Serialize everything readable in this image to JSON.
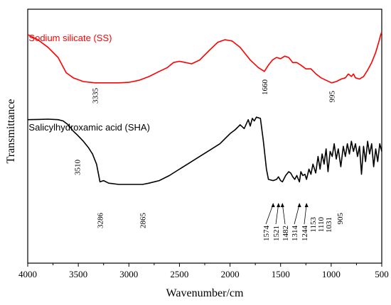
{
  "chart_data": {
    "type": "line",
    "xlabel": "Wavenumber/cm",
    "ylabel": "Transmittance",
    "xlim": [
      4000,
      500
    ],
    "x_reversed": true,
    "x_ticks": [
      "4000",
      "3500",
      "3000",
      "2500",
      "2000",
      "1500",
      "1000",
      "500"
    ],
    "grid": false,
    "series": [
      {
        "name": "Sodium silicate (SS)",
        "color": "#ff0000",
        "points": [
          [
            4000,
            0.9
          ],
          [
            3900,
            0.88
          ],
          [
            3800,
            0.85
          ],
          [
            3700,
            0.81
          ],
          [
            3620,
            0.75
          ],
          [
            3550,
            0.73
          ],
          [
            3450,
            0.715
          ],
          [
            3335,
            0.71
          ],
          [
            3200,
            0.71
          ],
          [
            3100,
            0.71
          ],
          [
            3000,
            0.712
          ],
          [
            2900,
            0.72
          ],
          [
            2800,
            0.735
          ],
          [
            2700,
            0.755
          ],
          [
            2620,
            0.77
          ],
          [
            2560,
            0.79
          ],
          [
            2500,
            0.795
          ],
          [
            2440,
            0.79
          ],
          [
            2380,
            0.785
          ],
          [
            2300,
            0.8
          ],
          [
            2200,
            0.84
          ],
          [
            2120,
            0.87
          ],
          [
            2050,
            0.88
          ],
          [
            1980,
            0.875
          ],
          [
            1900,
            0.85
          ],
          [
            1800,
            0.8
          ],
          [
            1720,
            0.77
          ],
          [
            1660,
            0.755
          ],
          [
            1620,
            0.78
          ],
          [
            1580,
            0.8
          ],
          [
            1540,
            0.81
          ],
          [
            1500,
            0.805
          ],
          [
            1460,
            0.815
          ],
          [
            1420,
            0.81
          ],
          [
            1380,
            0.79
          ],
          [
            1340,
            0.79
          ],
          [
            1300,
            0.78
          ],
          [
            1250,
            0.765
          ],
          [
            1200,
            0.765
          ],
          [
            1150,
            0.745
          ],
          [
            1100,
            0.73
          ],
          [
            1050,
            0.72
          ],
          [
            995,
            0.71
          ],
          [
            950,
            0.715
          ],
          [
            900,
            0.725
          ],
          [
            860,
            0.73
          ],
          [
            830,
            0.745
          ],
          [
            800,
            0.735
          ],
          [
            780,
            0.745
          ],
          [
            760,
            0.73
          ],
          [
            720,
            0.725
          ],
          [
            680,
            0.735
          ],
          [
            640,
            0.76
          ],
          [
            600,
            0.79
          ],
          [
            560,
            0.83
          ],
          [
            530,
            0.87
          ],
          [
            510,
            0.9
          ],
          [
            500,
            0.91
          ]
        ],
        "peaks": [
          "3335",
          "1660",
          "995"
        ]
      },
      {
        "name": "Salicylhydroxamic acid (SHA)",
        "color": "#000000",
        "points": [
          [
            4000,
            0.565
          ],
          [
            3900,
            0.566
          ],
          [
            3800,
            0.567
          ],
          [
            3700,
            0.565
          ],
          [
            3650,
            0.56
          ],
          [
            3600,
            0.545
          ],
          [
            3550,
            0.52
          ],
          [
            3510,
            0.505
          ],
          [
            3450,
            0.48
          ],
          [
            3400,
            0.455
          ],
          [
            3360,
            0.43
          ],
          [
            3320,
            0.39
          ],
          [
            3300,
            0.35
          ],
          [
            3286,
            0.32
          ],
          [
            3250,
            0.325
          ],
          [
            3200,
            0.315
          ],
          [
            3100,
            0.31
          ],
          [
            3000,
            0.31
          ],
          [
            2865,
            0.31
          ],
          [
            2800,
            0.315
          ],
          [
            2700,
            0.325
          ],
          [
            2600,
            0.345
          ],
          [
            2500,
            0.37
          ],
          [
            2400,
            0.395
          ],
          [
            2300,
            0.42
          ],
          [
            2200,
            0.445
          ],
          [
            2100,
            0.47
          ],
          [
            2000,
            0.51
          ],
          [
            1950,
            0.525
          ],
          [
            1900,
            0.545
          ],
          [
            1860,
            0.53
          ],
          [
            1820,
            0.565
          ],
          [
            1800,
            0.54
          ],
          [
            1780,
            0.57
          ],
          [
            1760,
            0.56
          ],
          [
            1740,
            0.575
          ],
          [
            1700,
            0.57
          ],
          [
            1670,
            0.48
          ],
          [
            1640,
            0.37
          ],
          [
            1620,
            0.33
          ],
          [
            1574,
            0.325
          ],
          [
            1540,
            0.33
          ],
          [
            1521,
            0.34
          ],
          [
            1500,
            0.325
          ],
          [
            1482,
            0.32
          ],
          [
            1450,
            0.345
          ],
          [
            1420,
            0.36
          ],
          [
            1400,
            0.355
          ],
          [
            1380,
            0.34
          ],
          [
            1360,
            0.33
          ],
          [
            1340,
            0.345
          ],
          [
            1314,
            0.32
          ],
          [
            1300,
            0.36
          ],
          [
            1280,
            0.345
          ],
          [
            1260,
            0.35
          ],
          [
            1244,
            0.33
          ],
          [
            1220,
            0.37
          ],
          [
            1200,
            0.35
          ],
          [
            1180,
            0.39
          ],
          [
            1153,
            0.355
          ],
          [
            1130,
            0.42
          ],
          [
            1110,
            0.37
          ],
          [
            1090,
            0.43
          ],
          [
            1070,
            0.39
          ],
          [
            1050,
            0.45
          ],
          [
            1031,
            0.36
          ],
          [
            1010,
            0.44
          ],
          [
            990,
            0.42
          ],
          [
            970,
            0.47
          ],
          [
            950,
            0.41
          ],
          [
            930,
            0.45
          ],
          [
            905,
            0.38
          ],
          [
            880,
            0.46
          ],
          [
            860,
            0.42
          ],
          [
            840,
            0.47
          ],
          [
            820,
            0.43
          ],
          [
            800,
            0.48
          ],
          [
            780,
            0.44
          ],
          [
            760,
            0.47
          ],
          [
            740,
            0.42
          ],
          [
            720,
            0.46
          ],
          [
            700,
            0.35
          ],
          [
            680,
            0.46
          ],
          [
            660,
            0.4
          ],
          [
            640,
            0.48
          ],
          [
            620,
            0.43
          ],
          [
            600,
            0.47
          ],
          [
            580,
            0.38
          ],
          [
            560,
            0.45
          ],
          [
            540,
            0.4
          ],
          [
            520,
            0.47
          ],
          [
            500,
            0.44
          ]
        ],
        "peaks": [
          "3510",
          "3286",
          "2865",
          "1574",
          "1521",
          "1482",
          "1314",
          "1244",
          "1153",
          "1110",
          "1031",
          "905"
        ]
      }
    ]
  }
}
